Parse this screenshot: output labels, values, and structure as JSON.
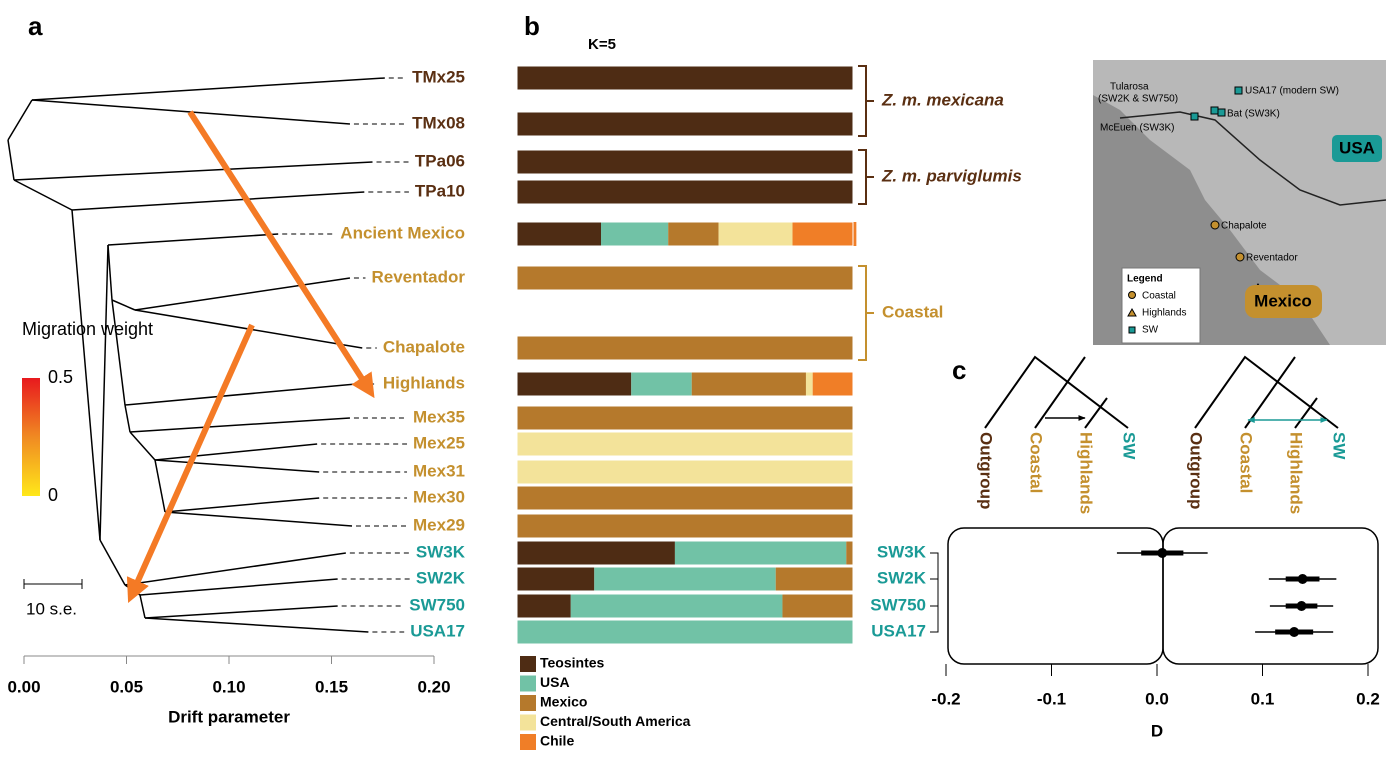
{
  "panel_labels": [
    "a",
    "b",
    "c"
  ],
  "chart_data": [
    {
      "type": "tree",
      "xlabel": "Drift parameter",
      "tips": [
        "TMx25",
        "TMx08",
        "TPa06",
        "TPa10",
        "Ancient Mexico",
        "Reventador",
        "Chapalote",
        "Highlands",
        "Mex35",
        "Mex25",
        "Mex31",
        "Mex30",
        "Mex29",
        "SW3K",
        "SW2K",
        "SW750",
        "USA17"
      ],
      "tip_colors": [
        "#5a2f12",
        "#5a2f12",
        "#5a2f12",
        "#5a2f12",
        "#c4902e",
        "#c4902e",
        "#c4902e",
        "#c4902e",
        "#c4902e",
        "#c4902e",
        "#c4902e",
        "#c4902e",
        "#c4902e",
        "#1a9a96",
        "#1a9a96",
        "#1a9a96",
        "#1a9a96"
      ],
      "values": [
        0.176,
        0.159,
        0.17,
        0.166,
        0.124,
        0.159,
        0.165,
        0.162,
        0.159,
        0.143,
        0.144,
        0.144,
        0.16,
        0.157,
        0.153,
        0.153,
        0.168
      ],
      "xlim": [
        0,
        0.2
      ],
      "xticks": [
        {
          "value": 0,
          "label": "0.00"
        },
        0.05,
        {
          "value": 0.1,
          "label": "0.10"
        },
        0.15,
        {
          "value": 0.2,
          "label": "0.20"
        }
      ],
      "colorbar": {
        "title": "Migration weight",
        "lim": [
          0,
          0.5
        ],
        "ticks": [
          0.5,
          0
        ],
        "colors": [
          "#ffe81a",
          "#e8191e"
        ]
      },
      "arrow_color": "#f47a25",
      "scale_label": "10 s.e."
    },
    {
      "type": "stacked-bar",
      "title": "K=5",
      "series": [
        {
          "name": "Teosintes",
          "color": "#4e2c14",
          "values": [
            1,
            1,
            1,
            1,
            0.25,
            0,
            0,
            0.34,
            0,
            0,
            0,
            0,
            0,
            0.47,
            0.23,
            0.16,
            0
          ]
        },
        {
          "name": "USA",
          "color": "#71c2a6",
          "values": [
            0,
            0,
            0,
            0,
            0.2,
            0,
            0,
            0.18,
            0,
            0,
            0,
            0,
            0,
            0.51,
            0.54,
            0.63,
            1
          ]
        },
        {
          "name": "Mexico",
          "color": "#b5792c",
          "values": [
            0,
            0,
            0,
            0,
            0.15,
            1,
            1,
            0.34,
            1,
            0,
            0,
            1,
            1,
            0.02,
            0.23,
            0.21,
            0
          ]
        },
        {
          "name": "Central/South America",
          "color": "#f3e39a",
          "values": [
            0,
            0,
            0,
            0,
            0.22,
            0,
            0,
            0.02,
            0,
            1,
            1,
            0,
            0,
            0,
            0,
            0,
            0
          ]
        },
        {
          "name": "Chile",
          "color": "#f07e27",
          "values": [
            0,
            0,
            0,
            0,
            0.19,
            0,
            0,
            0.12,
            0,
            0,
            0,
            0,
            0,
            0,
            0,
            0,
            0
          ]
        }
      ],
      "groups": [
        {
          "label": "Z. m. mexicana",
          "color": "#5a2f12"
        },
        {
          "label": "Z. m. parviglumis",
          "color": "#5a2f12"
        },
        {
          "label": "Coastal",
          "color": "#c4902e"
        }
      ]
    },
    {
      "type": "dot",
      "xlabel": "D",
      "categories": [
        "SW3K",
        "SW2K",
        "SW750",
        "USA17"
      ],
      "category_color": "#1a9a96",
      "values": [
        0.005,
        0.138,
        0.137,
        0.13
      ],
      "errors": [
        0.043,
        0.032,
        0.03,
        0.037
      ],
      "errors_thick": [
        0.02,
        0.016,
        0.015,
        0.018
      ],
      "xlim": [
        -0.2,
        0.2
      ],
      "xticks": [
        -0.2,
        -0.1,
        {
          "value": 0,
          "label": "0.0"
        },
        0.1,
        0.2
      ],
      "tree_labels": [
        "Outgroup",
        "Coastal",
        "Highlands",
        "SW"
      ],
      "tree_label_colors": [
        "#5a2f12",
        "#c4902e",
        "#c4902e",
        "#1a9a96"
      ],
      "tree_arrow_colors": [
        "#000000",
        "#1a9a96"
      ]
    }
  ],
  "map": {
    "sites": [
      "Tularosa",
      "(SW2K & SW750)",
      "USA17 (modern SW)",
      "Bat (SW3K)",
      "McEuen (SW3K)",
      "Chapalote",
      "Reventador"
    ],
    "countries": [
      "USA",
      "Mexico"
    ],
    "legend_title": "Legend",
    "legend": [
      "Coastal",
      "Highlands",
      "SW"
    ]
  }
}
